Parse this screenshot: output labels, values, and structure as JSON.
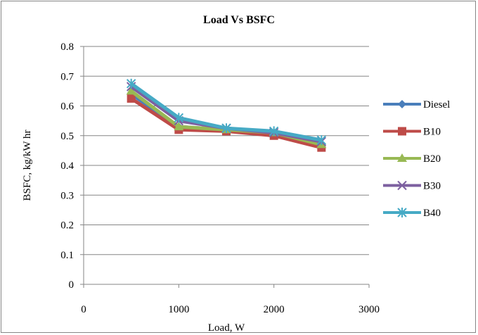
{
  "chart_data": {
    "type": "line",
    "title": "Load Vs BSFC",
    "xlabel": "Load, W",
    "ylabel": "BSFC, kg/kW hr",
    "xlim": [
      0,
      3000
    ],
    "ylim": [
      0,
      0.8
    ],
    "x_ticks": [
      "0",
      "1000",
      "2000",
      "3000"
    ],
    "y_ticks": [
      "0",
      "0.1",
      "0.2",
      "0.3",
      "0.4",
      "0.5",
      "0.6",
      "0.7",
      "0.8"
    ],
    "grid": "horizontal",
    "legend_position": "right",
    "x": [
      500,
      1000,
      1500,
      2000,
      2500
    ],
    "series": [
      {
        "name": "Diesel",
        "color": "#4a7ebb",
        "marker": "diamond",
        "values": [
          0.64,
          0.53,
          0.52,
          0.51,
          0.47
        ]
      },
      {
        "name": "B10",
        "color": "#be4b48",
        "marker": "square",
        "values": [
          0.625,
          0.52,
          0.515,
          0.5,
          0.46
        ]
      },
      {
        "name": "B20",
        "color": "#98b954",
        "marker": "triangle",
        "values": [
          0.65,
          0.53,
          0.52,
          0.51,
          0.47
        ]
      },
      {
        "name": "B30",
        "color": "#7d60a0",
        "marker": "x",
        "values": [
          0.665,
          0.55,
          0.525,
          0.51,
          0.48
        ]
      },
      {
        "name": "B40",
        "color": "#46aac5",
        "marker": "star",
        "values": [
          0.675,
          0.56,
          0.525,
          0.515,
          0.485
        ]
      }
    ]
  }
}
